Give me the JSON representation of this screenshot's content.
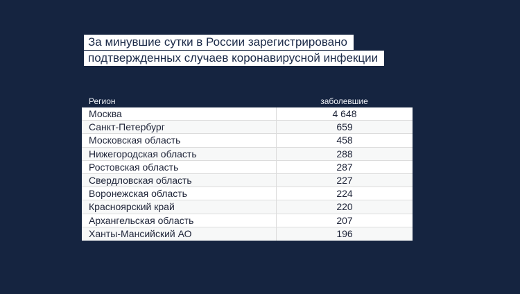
{
  "colors": {
    "background": "#152440",
    "title_chip": "#ffffff",
    "title_text": "#1b2a48",
    "header_text": "#eef1f6",
    "row_white": "#ffffff",
    "row_alt": "#f7f8f8",
    "divider": "#dcdcdc",
    "cell_text": "#20263a"
  },
  "title": {
    "line1": "За минувшие сутки в России зарегистрировано",
    "line2": "подтвержденных случаев коронавирусной инфекции"
  },
  "table": {
    "columns": [
      {
        "key": "region",
        "label": "Регион"
      },
      {
        "key": "cases",
        "label": "заболевшие"
      }
    ],
    "rows": [
      {
        "region": "Москва",
        "cases": "4 648"
      },
      {
        "region": "Санкт-Петербург",
        "cases": "659"
      },
      {
        "region": "Московская область",
        "cases": "458"
      },
      {
        "region": "Нижегородская область",
        "cases": "288"
      },
      {
        "region": "Ростовская область",
        "cases": "287"
      },
      {
        "region": "Свердловская область",
        "cases": "227"
      },
      {
        "region": "Воронежская область",
        "cases": "224"
      },
      {
        "region": "Красноярский край",
        "cases": "220"
      },
      {
        "region": "Архангельская область",
        "cases": "207"
      },
      {
        "region": "Ханты-Мансийский АО",
        "cases": "196"
      }
    ]
  },
  "chart_data": {
    "type": "table",
    "title": "За минувшие сутки в России зарегистрировано подтвержденных случаев коронавирусной инфекции",
    "columns": [
      "Регион",
      "заболевшие"
    ],
    "rows": [
      [
        "Москва",
        4648
      ],
      [
        "Санкт-Петербург",
        659
      ],
      [
        "Московская область",
        458
      ],
      [
        "Нижегородская область",
        288
      ],
      [
        "Ростовская область",
        287
      ],
      [
        "Свердловская область",
        227
      ],
      [
        "Воронежская область",
        224
      ],
      [
        "Красноярский край",
        220
      ],
      [
        "Архангельская область",
        207
      ],
      [
        "Ханты-Мансийский АО",
        196
      ]
    ]
  }
}
